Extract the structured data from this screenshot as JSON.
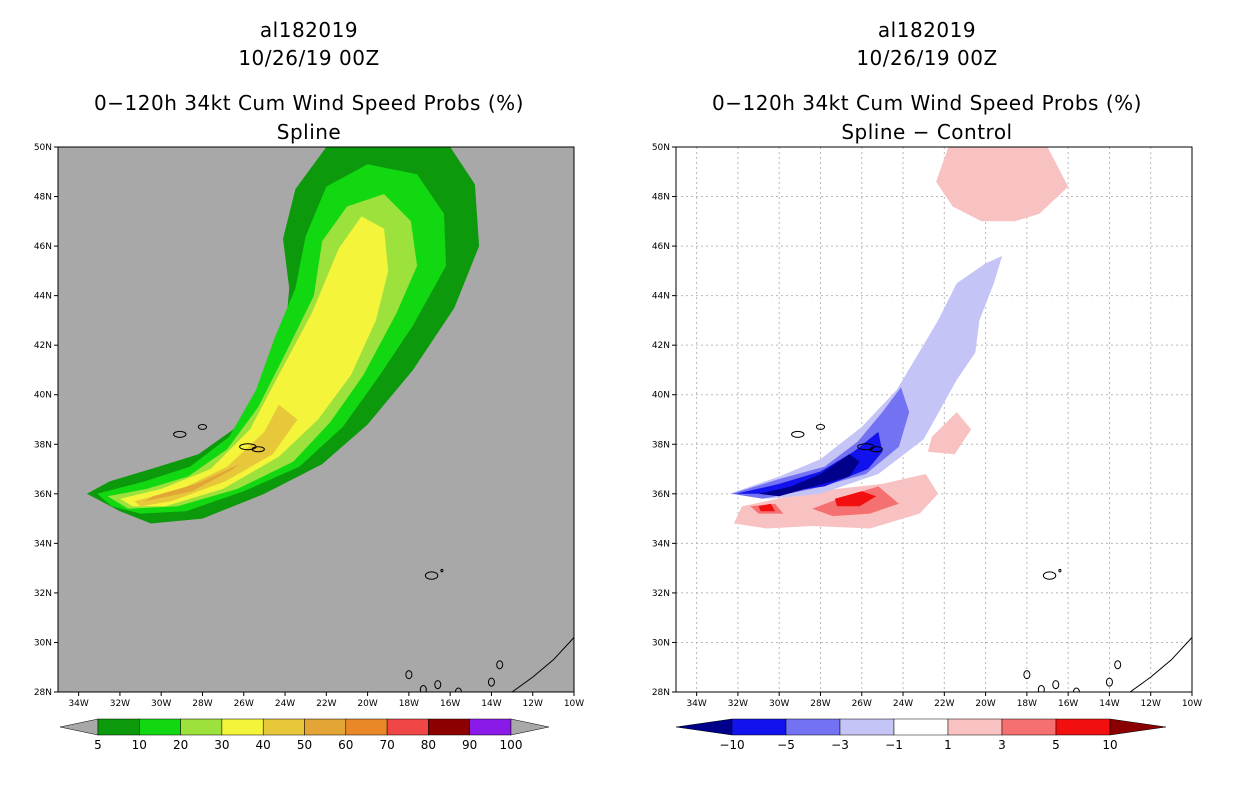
{
  "left_title": {
    "storm": "al182019",
    "datetime": "10/26/19 00Z",
    "product": "0−120h 34kt Cum Wind Speed Probs (%)",
    "subtitle": "Spline"
  },
  "right_title": {
    "storm": "al182019",
    "datetime": "10/26/19 00Z",
    "product": "0−120h 34kt Cum Wind Speed Probs (%)",
    "subtitle": "Spline − Control"
  },
  "colors": {
    "background_gray": "#a8a8a8",
    "grid": "#b8b8b8"
  },
  "chart_data": [
    {
      "type": "heatmap",
      "panel": "left",
      "title": "Spline",
      "lon_range": [
        -35,
        -10
      ],
      "lat_range": [
        28,
        50
      ],
      "x_ticks": [
        "34W",
        "32W",
        "30W",
        "28W",
        "26W",
        "24W",
        "22W",
        "20W",
        "18W",
        "16W",
        "14W",
        "12W",
        "10W"
      ],
      "x_tick_values": [
        -34,
        -32,
        -30,
        -28,
        -26,
        -24,
        -22,
        -20,
        -18,
        -16,
        -14,
        -12,
        -10
      ],
      "y_ticks": [
        "28N",
        "30N",
        "32N",
        "34N",
        "36N",
        "38N",
        "40N",
        "42N",
        "44N",
        "46N",
        "48N",
        "50N"
      ],
      "y_tick_values": [
        28,
        30,
        32,
        34,
        36,
        38,
        40,
        42,
        44,
        46,
        48,
        50
      ],
      "grid": false,
      "contours": [
        {
          "level": 5,
          "color": "#0c9a0c",
          "lonlat": [
            [
              -33.6,
              36.0
            ],
            [
              -32.5,
              36.5
            ],
            [
              -30.5,
              37.0
            ],
            [
              -28.2,
              37.6
            ],
            [
              -26.5,
              38.6
            ],
            [
              -25.2,
              40.3
            ],
            [
              -24.0,
              42.3
            ],
            [
              -23.8,
              44.3
            ],
            [
              -24.1,
              46.3
            ],
            [
              -23.5,
              48.3
            ],
            [
              -22.0,
              50.0
            ],
            [
              -16.0,
              50.0
            ],
            [
              -14.8,
              48.5
            ],
            [
              -14.6,
              46.0
            ],
            [
              -15.8,
              43.5
            ],
            [
              -17.8,
              41.0
            ],
            [
              -20.0,
              38.8
            ],
            [
              -22.2,
              37.2
            ],
            [
              -25.0,
              36.0
            ],
            [
              -28.0,
              35.0
            ],
            [
              -30.5,
              34.8
            ],
            [
              -32.0,
              35.3
            ]
          ]
        },
        {
          "level": 10,
          "color": "#12d812",
          "lonlat": [
            [
              -33.1,
              36.0
            ],
            [
              -30.8,
              36.5
            ],
            [
              -28.6,
              37.1
            ],
            [
              -26.7,
              38.3
            ],
            [
              -25.4,
              40.2
            ],
            [
              -24.5,
              42.3
            ],
            [
              -23.5,
              44.3
            ],
            [
              -23.0,
              46.4
            ],
            [
              -22.0,
              48.4
            ],
            [
              -20.0,
              49.3
            ],
            [
              -17.6,
              48.9
            ],
            [
              -16.3,
              47.3
            ],
            [
              -16.2,
              45.2
            ],
            [
              -17.8,
              42.8
            ],
            [
              -19.4,
              40.8
            ],
            [
              -21.2,
              38.7
            ],
            [
              -23.3,
              37.1
            ],
            [
              -26.0,
              36.1
            ],
            [
              -28.8,
              35.3
            ],
            [
              -31.0,
              35.2
            ],
            [
              -32.4,
              35.5
            ]
          ]
        },
        {
          "level": 20,
          "color": "#9de13c",
          "lonlat": [
            [
              -32.6,
              35.9
            ],
            [
              -30.7,
              36.2
            ],
            [
              -28.7,
              36.7
            ],
            [
              -26.8,
              37.8
            ],
            [
              -25.3,
              39.5
            ],
            [
              -23.9,
              41.8
            ],
            [
              -22.6,
              44.0
            ],
            [
              -22.2,
              46.2
            ],
            [
              -21.0,
              47.6
            ],
            [
              -19.2,
              48.1
            ],
            [
              -17.9,
              47.0
            ],
            [
              -17.6,
              45.2
            ],
            [
              -18.6,
              43.3
            ],
            [
              -20.2,
              40.8
            ],
            [
              -21.8,
              38.9
            ],
            [
              -23.6,
              37.3
            ],
            [
              -26.3,
              36.2
            ],
            [
              -29.2,
              35.5
            ],
            [
              -31.6,
              35.4
            ]
          ]
        },
        {
          "level": 30,
          "color": "#f4f43a",
          "lonlat": [
            [
              -32.0,
              35.8
            ],
            [
              -30.0,
              36.2
            ],
            [
              -27.6,
              37.0
            ],
            [
              -25.7,
              38.6
            ],
            [
              -24.3,
              40.8
            ],
            [
              -22.7,
              43.3
            ],
            [
              -21.4,
              45.9
            ],
            [
              -20.3,
              47.2
            ],
            [
              -19.2,
              46.7
            ],
            [
              -19.0,
              45.0
            ],
            [
              -19.6,
              43.0
            ],
            [
              -20.8,
              40.8
            ],
            [
              -22.4,
              39.0
            ],
            [
              -24.3,
              37.5
            ],
            [
              -27.0,
              36.2
            ],
            [
              -29.8,
              35.5
            ],
            [
              -31.4,
              35.5
            ]
          ]
        },
        {
          "level": 40,
          "color": "#e7c83a",
          "lonlat": [
            [
              -31.3,
              35.7
            ],
            [
              -29.0,
              36.2
            ],
            [
              -26.8,
              37.1
            ],
            [
              -25.0,
              38.5
            ],
            [
              -24.3,
              39.6
            ],
            [
              -23.4,
              39.0
            ],
            [
              -24.6,
              37.6
            ],
            [
              -26.9,
              36.5
            ],
            [
              -29.5,
              35.7
            ],
            [
              -31.0,
              35.5
            ]
          ]
        },
        {
          "level": 50,
          "color": "#e3a636",
          "lonlat": [
            [
              -30.8,
              35.7
            ],
            [
              -28.5,
              36.1
            ],
            [
              -26.5,
              37.0
            ],
            [
              -25.6,
              37.6
            ],
            [
              -26.2,
              37.2
            ],
            [
              -28.3,
              36.4
            ],
            [
              -30.4,
              35.9
            ]
          ]
        }
      ],
      "colorbar": {
        "levels": [
          "5",
          "10",
          "20",
          "30",
          "40",
          "50",
          "60",
          "70",
          "80",
          "90",
          "100"
        ],
        "colors": [
          "#0c9a0c",
          "#12d812",
          "#9de13c",
          "#f4f43a",
          "#e7c83a",
          "#e3a636",
          "#ea8828",
          "#f04646",
          "#8c0000",
          "#8a1ae8"
        ],
        "end_color": "#a8a8a8"
      }
    },
    {
      "type": "heatmap",
      "panel": "right",
      "title": "Spline − Control",
      "lon_range": [
        -35,
        -10
      ],
      "lat_range": [
        28,
        50
      ],
      "x_ticks": [
        "34W",
        "32W",
        "30W",
        "28W",
        "26W",
        "24W",
        "22W",
        "20W",
        "18W",
        "16W",
        "14W",
        "12W",
        "10W"
      ],
      "x_tick_values": [
        -34,
        -32,
        -30,
        -28,
        -26,
        -24,
        -22,
        -20,
        -18,
        -16,
        -14,
        -12,
        -10
      ],
      "y_ticks": [
        "28N",
        "30N",
        "32N",
        "34N",
        "36N",
        "38N",
        "40N",
        "42N",
        "44N",
        "46N",
        "48N",
        "50N"
      ],
      "y_tick_values": [
        28,
        30,
        32,
        34,
        36,
        38,
        40,
        42,
        44,
        46,
        48,
        50
      ],
      "grid": true,
      "contours": [
        {
          "level": 1,
          "color": "#f9c2c2",
          "lonlat": [
            [
              -21.8,
              50.0
            ],
            [
              -17.0,
              50.0
            ],
            [
              -16.0,
              48.4
            ],
            [
              -17.4,
              47.3
            ],
            [
              -18.6,
              47.0
            ],
            [
              -20.2,
              47.0
            ],
            [
              -21.6,
              47.6
            ],
            [
              -22.4,
              48.6
            ]
          ]
        },
        {
          "level": 1,
          "color": "#f9c2c2",
          "lonlat": [
            [
              -31.8,
              35.5
            ],
            [
              -29.5,
              35.9
            ],
            [
              -27.2,
              36.2
            ],
            [
              -25.0,
              36.4
            ],
            [
              -22.9,
              36.8
            ],
            [
              -22.3,
              36.0
            ],
            [
              -23.2,
              35.2
            ],
            [
              -25.6,
              34.6
            ],
            [
              -28.4,
              34.7
            ],
            [
              -30.6,
              34.6
            ],
            [
              -32.2,
              34.8
            ]
          ]
        },
        {
          "level": 1,
          "color": "#f9c2c2",
          "lonlat": [
            [
              -22.6,
              38.3
            ],
            [
              -21.4,
              39.3
            ],
            [
              -20.7,
              38.6
            ],
            [
              -21.5,
              37.6
            ],
            [
              -22.8,
              37.7
            ]
          ]
        },
        {
          "level": 3,
          "color": "#f57171",
          "lonlat": [
            [
              -28.4,
              35.4
            ],
            [
              -26.8,
              35.9
            ],
            [
              -25.2,
              36.3
            ],
            [
              -24.2,
              35.6
            ],
            [
              -25.6,
              35.2
            ],
            [
              -27.4,
              35.1
            ]
          ]
        },
        {
          "level": 3,
          "color": "#f57171",
          "lonlat": [
            [
              -31.4,
              35.5
            ],
            [
              -30.2,
              35.6
            ],
            [
              -29.8,
              35.2
            ],
            [
              -31.0,
              35.2
            ]
          ]
        },
        {
          "level": 5,
          "color": "#f20f0f",
          "lonlat": [
            [
              -27.3,
              35.8
            ],
            [
              -26.0,
              36.1
            ],
            [
              -25.3,
              35.9
            ],
            [
              -26.1,
              35.5
            ],
            [
              -27.2,
              35.5
            ]
          ]
        },
        {
          "level": 5,
          "color": "#f20f0f",
          "lonlat": [
            [
              -31.0,
              35.5
            ],
            [
              -30.4,
              35.6
            ],
            [
              -30.2,
              35.3
            ],
            [
              -30.9,
              35.3
            ]
          ]
        },
        {
          "level": -1,
          "color": "#c4c4f7",
          "lonlat": [
            [
              -32.4,
              36.0
            ],
            [
              -30.0,
              36.7
            ],
            [
              -28.0,
              37.4
            ],
            [
              -26.0,
              38.7
            ],
            [
              -24.3,
              40.2
            ],
            [
              -23.3,
              41.6
            ],
            [
              -22.3,
              43.0
            ],
            [
              -21.4,
              44.5
            ],
            [
              -20.0,
              45.3
            ],
            [
              -19.2,
              45.6
            ],
            [
              -19.6,
              44.5
            ],
            [
              -20.3,
              43.0
            ],
            [
              -20.5,
              41.7
            ],
            [
              -21.4,
              40.6
            ],
            [
              -23.0,
              38.2
            ],
            [
              -25.2,
              36.8
            ],
            [
              -28.0,
              36.0
            ],
            [
              -30.5,
              35.8
            ]
          ]
        },
        {
          "level": -3,
          "color": "#7272f2",
          "lonlat": [
            [
              -32.3,
              36.0
            ],
            [
              -30.0,
              36.6
            ],
            [
              -27.8,
              37.1
            ],
            [
              -26.2,
              38.1
            ],
            [
              -25.0,
              39.3
            ],
            [
              -24.1,
              40.3
            ],
            [
              -23.7,
              39.3
            ],
            [
              -24.2,
              37.9
            ],
            [
              -25.8,
              36.8
            ],
            [
              -28.4,
              36.2
            ],
            [
              -30.8,
              35.8
            ]
          ]
        },
        {
          "level": -5,
          "color": "#1212ee",
          "lonlat": [
            [
              -32.1,
              36.0
            ],
            [
              -30.0,
              36.4
            ],
            [
              -28.0,
              36.9
            ],
            [
              -26.4,
              37.7
            ],
            [
              -25.2,
              38.5
            ],
            [
              -25.0,
              37.7
            ],
            [
              -25.7,
              37.0
            ],
            [
              -27.8,
              36.3
            ],
            [
              -30.3,
              36.0
            ]
          ]
        },
        {
          "level": -10,
          "color": "#00008a",
          "lonlat": [
            [
              -31.0,
              36.0
            ],
            [
              -29.4,
              36.3
            ],
            [
              -28.0,
              36.8
            ],
            [
              -26.6,
              37.6
            ],
            [
              -26.1,
              37.3
            ],
            [
              -26.6,
              36.7
            ],
            [
              -28.3,
              36.3
            ],
            [
              -30.0,
              35.9
            ]
          ]
        }
      ],
      "colorbar": {
        "levels": [
          "−10",
          "−5",
          "−3",
          "−1",
          "1",
          "3",
          "5",
          "10"
        ],
        "colors": [
          "#00008a",
          "#1212ee",
          "#7272f2",
          "#c4c4f7",
          "#ffffff",
          "#f9c2c2",
          "#f57171",
          "#f20f0f",
          "#8a0000"
        ]
      }
    }
  ]
}
